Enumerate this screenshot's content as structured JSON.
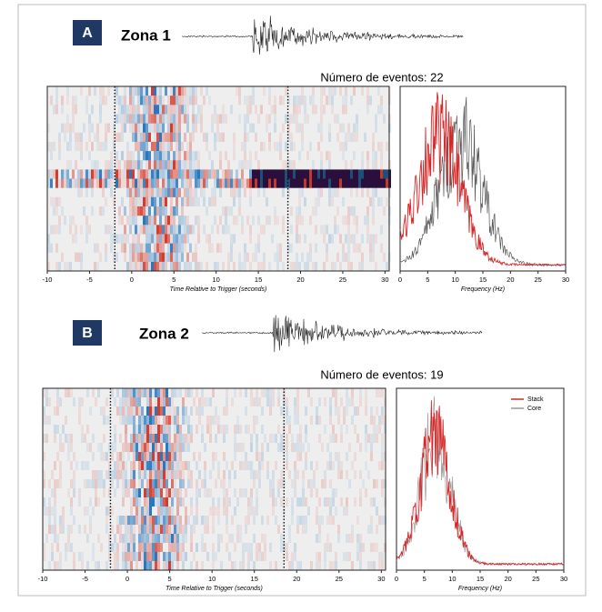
{
  "headers": [
    {
      "label": "A",
      "title": "Zona 1",
      "subtitle": "Número de eventos: 22"
    },
    {
      "label": "B",
      "title": "Zona 2",
      "subtitle": "Número de eventos: 19"
    }
  ],
  "chart_data": [
    {
      "type": "heatmap",
      "xlabel": "Time Relative to Trigger (seconds)",
      "xlim": [
        -10,
        30.5
      ],
      "xticks": [
        -10,
        -5,
        0,
        5,
        10,
        15,
        20,
        25,
        30
      ],
      "markers": [
        -2,
        18.5
      ]
    },
    {
      "type": "line",
      "xlabel": "Frequency (Hz)",
      "xlim": [
        0,
        30
      ],
      "xticks": [
        0,
        5,
        10,
        15,
        20,
        25,
        30
      ],
      "colors": [
        "#d62728",
        "#555555"
      ]
    },
    {
      "type": "heatmap",
      "xlabel": "Time Relative to Trigger (seconds)",
      "xlim": [
        -10,
        30.5
      ],
      "xticks": [
        -10,
        -5,
        0,
        5,
        10,
        15,
        20,
        25,
        30
      ],
      "markers": [
        -2,
        18.5
      ]
    },
    {
      "type": "line",
      "xlabel": "Frequency (Hz)",
      "xlim": [
        0,
        30
      ],
      "xticks": [
        0,
        5,
        10,
        15,
        20,
        25,
        30
      ],
      "series": [
        {
          "name": "Stack",
          "color": "#d62728"
        },
        {
          "name": "Core",
          "color": "#999999"
        }
      ]
    }
  ]
}
